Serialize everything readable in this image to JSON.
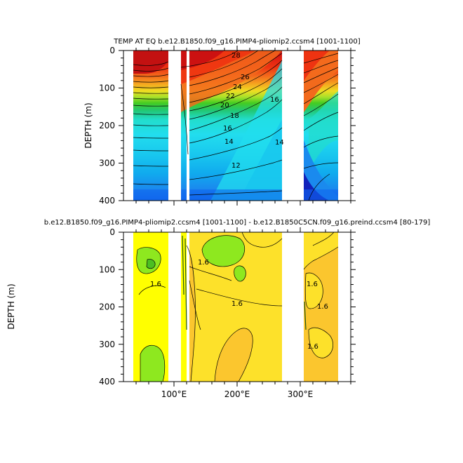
{
  "chart_data": [
    {
      "type": "heatmap",
      "subtype": "filled-contour",
      "title": "TEMP AT EQ b.e12.B1850.f09_g16.PIMP4-pliomip2.ccsm4 [1001-1100]",
      "xlabel": "",
      "ylabel": "DEPTH (m)",
      "ylim": [
        400,
        0
      ],
      "yticks": [
        "0",
        "100",
        "200",
        "300",
        "400"
      ],
      "xlim": [
        20,
        380
      ],
      "xticks": [],
      "contour_labels": [
        "28",
        "26",
        "24",
        "22",
        "20",
        "18",
        "16",
        "14",
        "12",
        "16",
        "14"
      ],
      "colors": {
        "warm_top": "#cc1111",
        "red": "#ee2211",
        "orange": "#f58a1f",
        "yellow": "#eedd22",
        "green": "#44cc22",
        "cyan": "#22ddee",
        "blue_cyan": "#11bbee",
        "blue": "#1166ee",
        "deep_blue": "#1122bb"
      },
      "data_extent_lon": [
        45,
        372
      ],
      "masked_lon_bands": [
        [
          98,
          112
        ],
        [
          119,
          122
        ],
        [
          127,
          131
        ],
        [
          280,
          316
        ]
      ]
    },
    {
      "type": "heatmap",
      "subtype": "filled-contour",
      "title": "b.e12.B1850.f09_g16.PIMP4-pliomip2.ccsm4 [1001-1100] - b.e12.B1850C5CN.f09_g16.preind.ccsm4 [80-179]",
      "xlabel": "",
      "ylabel": "DEPTH (m)",
      "ylim": [
        400,
        0
      ],
      "yticks": [
        "0",
        "100",
        "200",
        "300",
        "400"
      ],
      "xlim": [
        20,
        380
      ],
      "xticks": [
        "100°E",
        "200°E",
        "300°E"
      ],
      "xtick_values": [
        100,
        200,
        300
      ],
      "contour_labels": [
        "1.6",
        "1.6",
        "1.6",
        "1.6",
        "1.6",
        "1.6"
      ],
      "colors": {
        "low": "#ffff00",
        "mid": "#fde12a",
        "high": "#fbc62e",
        "green": "#8ee81f",
        "green_dark": "#4bbf22"
      },
      "data_extent_lon": [
        45,
        372
      ],
      "masked_lon_bands": [
        [
          98,
          112
        ],
        [
          119,
          122
        ],
        [
          127,
          131
        ],
        [
          280,
          316
        ]
      ]
    }
  ]
}
